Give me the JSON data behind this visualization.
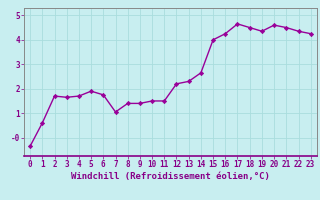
{
  "x": [
    0,
    1,
    2,
    3,
    4,
    5,
    6,
    7,
    8,
    9,
    10,
    11,
    12,
    13,
    14,
    15,
    16,
    17,
    18,
    19,
    20,
    21,
    22,
    23
  ],
  "y": [
    -0.35,
    0.6,
    1.7,
    1.65,
    1.7,
    1.9,
    1.75,
    1.05,
    1.4,
    1.4,
    1.5,
    1.5,
    2.2,
    2.3,
    2.65,
    4.0,
    4.25,
    4.65,
    4.5,
    4.35,
    4.6,
    4.5,
    4.35,
    4.25
  ],
  "line_color": "#990099",
  "marker": "D",
  "marker_size": 2.2,
  "background_color": "#c8eef0",
  "grid_color": "#aadddd",
  "xlabel": "Windchill (Refroidissement éolien,°C)",
  "xlim": [
    -0.5,
    23.5
  ],
  "ylim": [
    -0.75,
    5.3
  ],
  "ytick_positions": [
    0,
    1,
    2,
    3,
    4,
    5
  ],
  "ytick_labels": [
    "-0",
    "1",
    "2",
    "3",
    "4",
    "5"
  ],
  "xtick_labels": [
    "0",
    "1",
    "2",
    "3",
    "4",
    "5",
    "6",
    "7",
    "8",
    "9",
    "10",
    "11",
    "12",
    "13",
    "14",
    "15",
    "16",
    "17",
    "18",
    "19",
    "20",
    "21",
    "22",
    "23"
  ],
  "tick_color": "#880088",
  "label_fontsize": 6.5,
  "tick_fontsize": 5.5,
  "axis_color": "#880088",
  "line_width": 1.0,
  "spine_color": "#888888"
}
